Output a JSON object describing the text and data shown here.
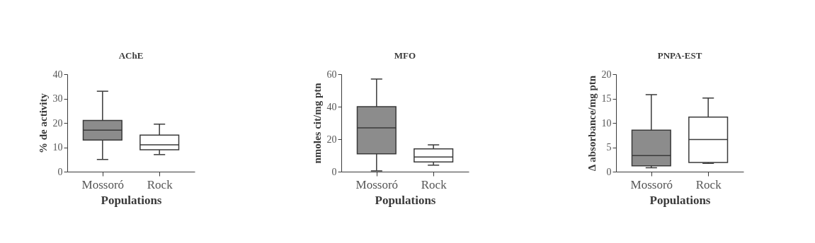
{
  "chart_data": [
    {
      "type": "box",
      "title": "AChE",
      "xlabel": "Populations",
      "ylabel": "% de activity",
      "categories": [
        "Mossoró",
        "Rock"
      ],
      "colors": [
        "#8c8c8c",
        "#ffffff"
      ],
      "ylim": [
        0,
        40
      ],
      "yticks": [
        0,
        10,
        20,
        30,
        40
      ],
      "boxes": [
        {
          "low": 5,
          "q1": 13,
          "median": 17,
          "q3": 21,
          "high": 33
        },
        {
          "low": 7,
          "q1": 9,
          "median": 11,
          "q3": 15,
          "high": 19.5
        }
      ]
    },
    {
      "type": "box",
      "title": "MFO",
      "xlabel": "Populations",
      "ylabel": "nmoles cit/mg ptn",
      "categories": [
        "Mossoró",
        "Rock"
      ],
      "colors": [
        "#8c8c8c",
        "#ffffff"
      ],
      "ylim": [
        0,
        60
      ],
      "yticks": [
        0,
        20,
        40,
        60
      ],
      "boxes": [
        {
          "low": 0.5,
          "q1": 11,
          "median": 27,
          "q3": 40,
          "high": 57
        },
        {
          "low": 4,
          "q1": 6,
          "median": 9,
          "q3": 14,
          "high": 16.5
        }
      ]
    },
    {
      "type": "box",
      "title": "PNPA-EST",
      "xlabel": "Populations",
      "ylabel": "Δ absorbance/mg ptn",
      "categories": [
        "Mossoró",
        "Rock"
      ],
      "colors": [
        "#8c8c8c",
        "#ffffff"
      ],
      "ylim": [
        0,
        20
      ],
      "yticks": [
        0,
        5,
        10,
        15,
        20
      ],
      "boxes": [
        {
          "low": 0.8,
          "q1": 1.2,
          "median": 3.3,
          "q3": 8.5,
          "high": 15.8
        },
        {
          "low": 1.7,
          "q1": 1.9,
          "median": 6.6,
          "q3": 11.2,
          "high": 15.1
        }
      ]
    }
  ]
}
